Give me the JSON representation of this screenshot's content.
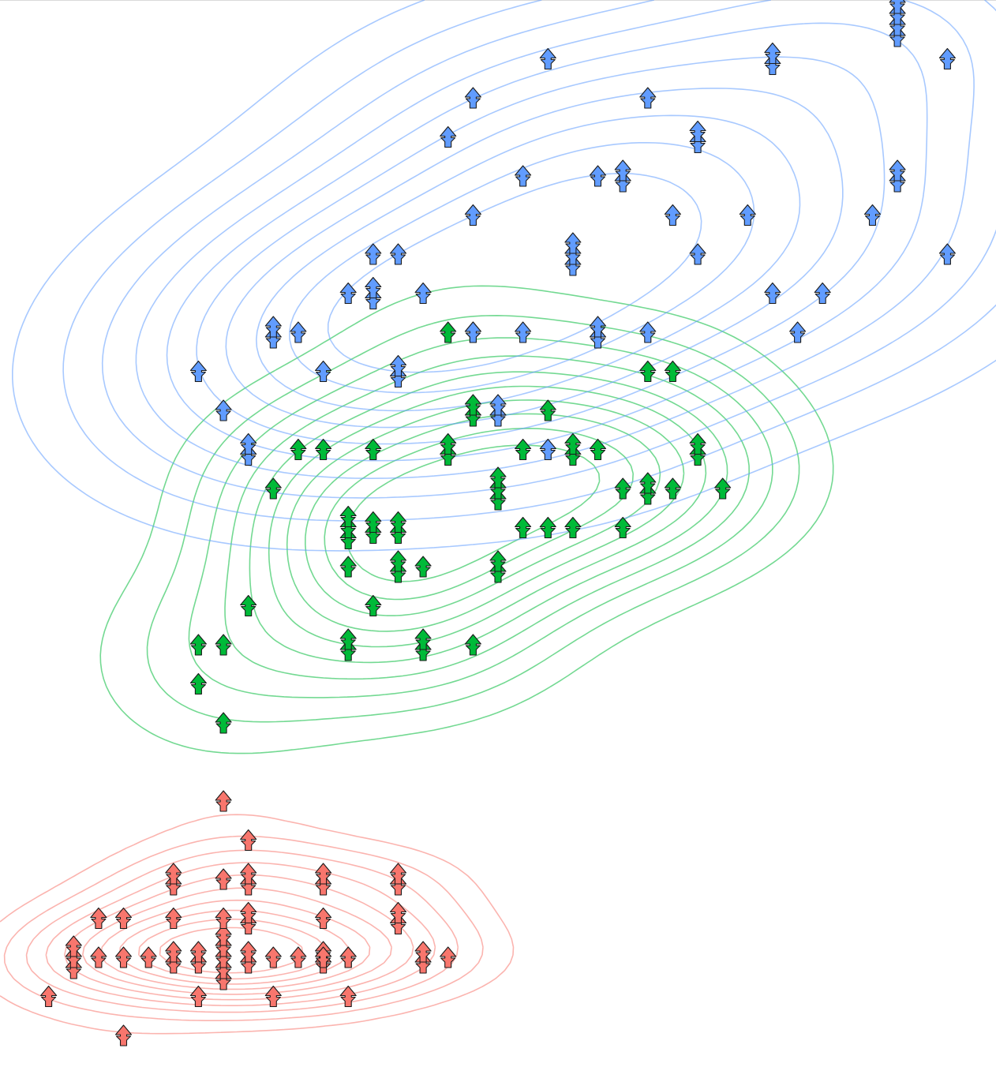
{
  "chart_data": {
    "type": "scatter",
    "title": "",
    "xlabel": "",
    "ylabel": "",
    "xlim": [
      4.2,
      8.0
    ],
    "ylim": [
      0.0,
      2.6
    ],
    "marker": "stacked-tree-icon",
    "grid": false,
    "legend": "none",
    "axes_visible": false,
    "series": [
      {
        "color": "#f8766d",
        "contours": true,
        "points": [
          [
            4.3,
            0.1,
            1
          ],
          [
            4.6,
            0.0,
            1
          ],
          [
            4.4,
            0.2,
            3
          ],
          [
            4.5,
            0.2,
            1
          ],
          [
            4.6,
            0.2,
            1
          ],
          [
            4.7,
            0.2,
            1
          ],
          [
            4.8,
            0.2,
            2
          ],
          [
            4.9,
            0.2,
            2
          ],
          [
            5.0,
            0.2,
            5
          ],
          [
            5.1,
            0.2,
            2
          ],
          [
            5.2,
            0.2,
            1
          ],
          [
            5.3,
            0.2,
            1
          ],
          [
            5.4,
            0.2,
            2
          ],
          [
            5.5,
            0.2,
            1
          ],
          [
            5.7,
            0.3,
            2
          ],
          [
            5.8,
            0.2,
            2
          ],
          [
            5.9,
            0.2,
            1
          ],
          [
            4.8,
            0.3,
            1
          ],
          [
            5.0,
            0.3,
            1
          ],
          [
            5.1,
            0.3,
            2
          ],
          [
            5.4,
            0.3,
            1
          ],
          [
            5.4,
            0.4,
            2
          ],
          [
            4.8,
            0.4,
            2
          ],
          [
            5.1,
            0.4,
            2
          ],
          [
            5.5,
            0.2,
            1
          ],
          [
            5.7,
            0.4,
            2
          ],
          [
            5.0,
            0.4,
            1
          ],
          [
            5.4,
            0.2,
            1
          ],
          [
            5.0,
            0.6,
            1
          ],
          [
            5.2,
            0.1,
            1
          ],
          [
            5.5,
            0.1,
            1
          ],
          [
            5.1,
            0.5,
            1
          ],
          [
            4.9,
            0.1,
            1
          ],
          [
            4.6,
            0.3,
            1
          ],
          [
            4.5,
            0.3,
            1
          ]
        ]
      },
      {
        "color": "#00ba38",
        "contours": true,
        "points": [
          [
            7.0,
            1.4,
            1
          ],
          [
            6.4,
            1.5,
            2
          ],
          [
            6.9,
            1.5,
            2
          ],
          [
            5.5,
            1.3,
            3
          ],
          [
            6.5,
            1.5,
            1
          ],
          [
            5.7,
            1.3,
            2
          ],
          [
            6.3,
            1.6,
            1
          ],
          [
            4.9,
            1.0,
            1
          ],
          [
            6.6,
            1.3,
            1
          ],
          [
            5.2,
            1.4,
            1
          ],
          [
            5.0,
            1.0,
            1
          ],
          [
            5.9,
            1.5,
            2
          ],
          [
            6.0,
            1.0,
            1
          ],
          [
            6.1,
            1.4,
            3
          ],
          [
            5.6,
            1.3,
            2
          ],
          [
            6.7,
            1.4,
            2
          ],
          [
            5.8,
            1.0,
            2
          ],
          [
            6.2,
            1.5,
            1
          ],
          [
            5.6,
            1.1,
            1
          ],
          [
            6.8,
            1.4,
            1
          ],
          [
            5.4,
            1.5,
            1
          ],
          [
            6.0,
            1.6,
            2
          ],
          [
            5.5,
            1.0,
            2
          ],
          [
            5.8,
            1.2,
            1
          ],
          [
            5.6,
            1.5,
            1
          ],
          [
            5.7,
            1.2,
            2
          ],
          [
            5.1,
            1.1,
            1
          ],
          [
            6.3,
            1.3,
            1
          ],
          [
            6.1,
            1.2,
            2
          ],
          [
            5.5,
            1.2,
            1
          ],
          [
            6.4,
            1.3,
            1
          ],
          [
            6.6,
            1.4,
            1
          ],
          [
            6.8,
            1.7,
            1
          ],
          [
            6.7,
            1.7,
            1
          ],
          [
            6.0,
            1.8,
            1
          ],
          [
            5.9,
            1.8,
            1
          ],
          [
            6.2,
            1.3,
            1
          ],
          [
            5.3,
            1.5,
            1
          ],
          [
            5.0,
            0.8,
            1
          ],
          [
            4.9,
            0.9,
            1
          ]
        ]
      },
      {
        "color": "#619cff",
        "contours": true,
        "points": [
          [
            6.3,
            2.5,
            1
          ],
          [
            5.8,
            1.9,
            1
          ],
          [
            7.1,
            2.1,
            1
          ],
          [
            6.5,
            1.8,
            2
          ],
          [
            7.6,
            2.1,
            1
          ],
          [
            4.9,
            1.7,
            1
          ],
          [
            7.3,
            1.8,
            1
          ],
          [
            6.7,
            1.8,
            1
          ],
          [
            7.2,
            2.5,
            2
          ],
          [
            6.4,
            2.0,
            3
          ],
          [
            6.8,
            2.1,
            1
          ],
          [
            5.7,
            2.0,
            1
          ],
          [
            6.5,
            2.2,
            1
          ],
          [
            7.7,
            2.2,
            2
          ],
          [
            6.0,
            1.8,
            1
          ],
          [
            6.9,
            2.3,
            2
          ],
          [
            5.6,
            2.0,
            1
          ],
          [
            6.2,
            1.8,
            1
          ],
          [
            6.1,
            1.6,
            2
          ],
          [
            7.4,
            1.9,
            1
          ],
          [
            7.9,
            2.0,
            1
          ],
          [
            6.3,
            1.5,
            1
          ],
          [
            6.0,
            2.1,
            1
          ],
          [
            6.7,
            2.4,
            1
          ],
          [
            5.9,
            2.3,
            1
          ],
          [
            5.5,
            1.9,
            1
          ],
          [
            5.4,
            1.7,
            1
          ],
          [
            5.1,
            1.5,
            2
          ],
          [
            5.6,
            1.9,
            2
          ],
          [
            7.7,
            2.6,
            4
          ],
          [
            6.6,
            2.2,
            2
          ],
          [
            5.2,
            1.8,
            2
          ],
          [
            5.3,
            1.8,
            1
          ],
          [
            7.2,
            1.9,
            1
          ],
          [
            6.2,
            2.2,
            1
          ],
          [
            7.9,
            2.5,
            1
          ],
          [
            5.0,
            1.6,
            1
          ],
          [
            5.7,
            1.7,
            2
          ],
          [
            6.9,
            2.0,
            1
          ],
          [
            6.0,
            2.4,
            1
          ]
        ]
      }
    ]
  }
}
